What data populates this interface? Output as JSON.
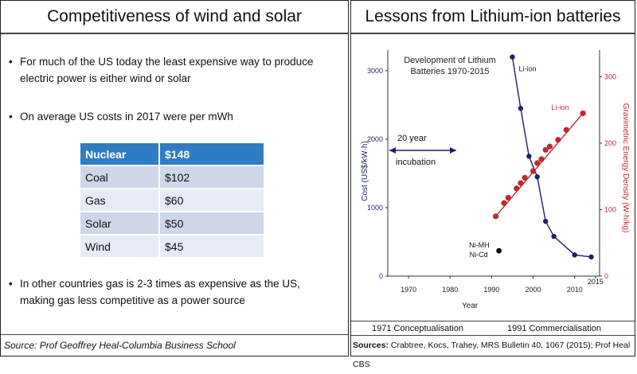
{
  "left": {
    "title": "Competitiveness of wind and solar",
    "bullets": [
      "For much of the US today the least expensive way to produce electric power is either wind or solar",
      "On average US costs in 2017 were per mWh",
      "In other countries gas is 2-3 times as expensive as the US, making gas less competitive as a power source"
    ],
    "table": [
      {
        "source": "Nuclear",
        "cost": "$148"
      },
      {
        "source": "Coal",
        "cost": "$102"
      },
      {
        "source": "Gas",
        "cost": "$60"
      },
      {
        "source": "Solar",
        "cost": "$50"
      },
      {
        "source": "Wind",
        "cost": "$45"
      }
    ],
    "source": "Source: Prof Geoffrey Heal-Columbia Business School"
  },
  "right": {
    "title": "Lessons from Lithium-ion batteries",
    "phase_left": "1971 Conceptualisation",
    "phase_right": "1991 Commercialisation",
    "sources_label": "Sources:",
    "sources_text": "Crabtree, Kocs, Trahey, MRS Bulletin 40, 1067 (2015); Prof Heal CBS"
  },
  "colors": {
    "cost_series": "#1b1f6b",
    "energy_series": "#c0282d",
    "nimh_point": "#000000",
    "table_header": "#2f7cc3"
  },
  "chart_data": {
    "type": "scatter",
    "title": "Development of Lithium Batteries 1970-2015",
    "xlabel": "Year",
    "ylabel": "Cost (US$/kW·h)",
    "y2label": "Gravimetric Energy Density (W·h/kg)",
    "xlim": [
      1965,
      2016
    ],
    "ylim": [
      0,
      3300
    ],
    "y2lim": [
      0,
      340
    ],
    "x_ticks": [
      "1970",
      "1980",
      "1990",
      "2000",
      "2010",
      "2015"
    ],
    "y_ticks": [
      "0",
      "1000",
      "2000",
      "3000"
    ],
    "y2_ticks": [
      "0",
      "100",
      "200",
      "300"
    ],
    "series": [
      {
        "name": "Li-ion",
        "axis": "left",
        "x": [
          1995,
          1997,
          1999,
          2001,
          2003,
          2005,
          2010,
          2014
        ],
        "y": [
          3200,
          2450,
          1750,
          1450,
          800,
          580,
          310,
          280
        ]
      },
      {
        "name": "Li-ion",
        "axis": "right",
        "x": [
          1991,
          1993,
          1994,
          1996,
          1997,
          1998,
          2000,
          2001,
          2002,
          2003,
          2004,
          2006,
          2008,
          2012
        ],
        "y": [
          90,
          110,
          118,
          132,
          140,
          148,
          158,
          170,
          176,
          190,
          195,
          205,
          220,
          245
        ]
      },
      {
        "name": "Ni-MH Ni-Cd",
        "axis": "left",
        "x": [
          1991
        ],
        "y": [
          370
        ]
      }
    ],
    "annotations": {
      "incubation_1": "20 year",
      "incubation_2": "incubation",
      "cost_label": "Li-ion",
      "energy_label": "Li-ion",
      "nimh_1": "Ni-MH",
      "nimh_2": "Ni-Cd"
    }
  }
}
